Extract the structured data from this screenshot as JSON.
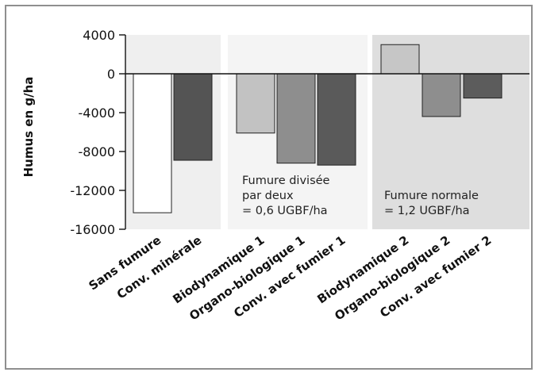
{
  "chart_data": {
    "type": "bar",
    "title": "",
    "xlabel": "",
    "ylabel": "Humus en g/ha",
    "ylim": [
      -16000,
      4000
    ],
    "yticks": [
      4000,
      0,
      -4000,
      -8000,
      -12000,
      -16000
    ],
    "ytick_labels": [
      "4000",
      "0",
      "-4000",
      "-8000",
      "-12000",
      "-16000"
    ],
    "grid": false,
    "categories": [
      "Sans fumure",
      "Conv. minérale",
      "Biodynamique 1",
      "Organo-biologique 1",
      "Conv. avec fumier 1",
      "Biodynamique 2",
      "Organo-biologique 2",
      "Conv. avec fumier 2"
    ],
    "values": [
      -14300,
      -8900,
      -6100,
      -9200,
      -9400,
      3000,
      -4400,
      -2500
    ],
    "bar_colors": [
      "#ffffff",
      "#545454",
      "#c2c2c2",
      "#8e8e8e",
      "#5a5a5a",
      "#c6c6c6",
      "#8e8e8e",
      "#5c5c5c"
    ],
    "groups": [
      {
        "label_lines": [],
        "background": "#efefef"
      },
      {
        "label_lines": [
          "Fumure divisée",
          "par deux",
          "= 0,6 UGBF/ha"
        ],
        "background": "#f4f4f4"
      },
      {
        "label_lines": [
          "Fumure normale",
          "= 1,2 UGBF/ha"
        ],
        "background": "#dedede"
      }
    ]
  }
}
